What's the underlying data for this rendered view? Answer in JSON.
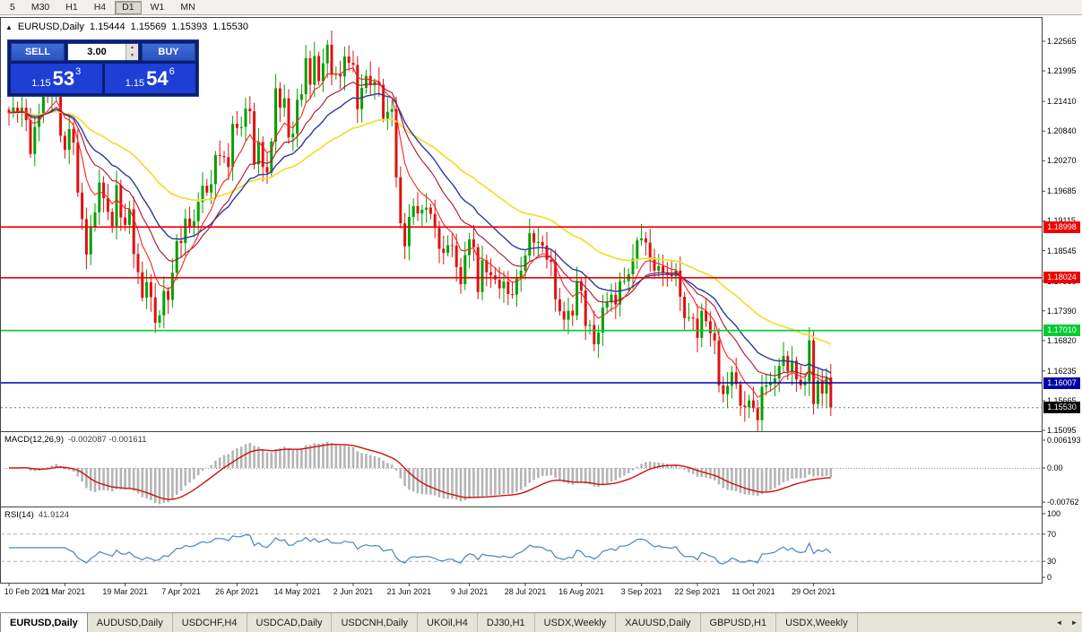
{
  "toolbar": {
    "timeframes": [
      "5",
      "M30",
      "H1",
      "H4",
      "D1",
      "W1",
      "MN"
    ],
    "active": "D1"
  },
  "chart_header": {
    "collapse_icon": "▲",
    "symbol": "EURUSD,Daily",
    "open": "1.15444",
    "high": "1.15569",
    "low": "1.15393",
    "close": "1.15530"
  },
  "trade_panel": {
    "sell_label": "SELL",
    "buy_label": "BUY",
    "volume": "3.00",
    "spin_up_icon": "▲",
    "spin_down_icon": "▼",
    "bid": {
      "prefix": "1.15",
      "big": "53",
      "sup": "3"
    },
    "ask": {
      "prefix": "1.15",
      "big": "54",
      "sup": "6"
    }
  },
  "price_axis": [
    "1.22565",
    "1.21995",
    "1.21410",
    "1.20840",
    "1.20270",
    "1.19685",
    "1.19115",
    "1.18545",
    "1.17960",
    "1.17390",
    "1.16820",
    "1.16235",
    "1.15665",
    "1.15095"
  ],
  "macd_panel": {
    "name": "MACD(12,26,9)",
    "values": "-0.002087 -0.001611",
    "axis": [
      "0.006193",
      "0.00",
      "-0.00762"
    ]
  },
  "rsi_panel": {
    "name": "RSI(14)",
    "value": "41.9124",
    "axis": [
      "100",
      "70",
      "30",
      "0"
    ]
  },
  "tabs": {
    "scroll_left_icon": "◄",
    "scroll_right_icon": "►",
    "items": [
      {
        "label": "EURUSD,Daily",
        "active": true
      },
      {
        "label": "AUDUSD,Daily"
      },
      {
        "label": "USDCHF,H4"
      },
      {
        "label": "USDCAD,Daily"
      },
      {
        "label": "USDCNH,Daily"
      },
      {
        "label": "UKOil,H4"
      },
      {
        "label": "DJ30,H1"
      },
      {
        "label": "USDX,Weekly"
      },
      {
        "label": "XAUUSD,Daily"
      },
      {
        "label": "GBPUSD,H1"
      },
      {
        "label": "USDX,Weekly"
      }
    ]
  },
  "chart_data": {
    "type": "candlestick",
    "title": "EURUSD,Daily",
    "ohlc_last": {
      "open": 1.15444,
      "high": 1.15569,
      "low": 1.15393,
      "close": 1.1553
    },
    "y_ticks": [
      1.22565,
      1.21995,
      1.2141,
      1.2084,
      1.2027,
      1.19685,
      1.19115,
      1.18545,
      1.1796,
      1.1739,
      1.1682,
      1.16235,
      1.15665,
      1.15095
    ],
    "x_dates": [
      {
        "label": "10 Feb 2021",
        "i": 0
      },
      {
        "label": "1 Mar 2021",
        "i": 13
      },
      {
        "label": "19 Mar 2021",
        "i": 27
      },
      {
        "label": "7 Apr 2021",
        "i": 40
      },
      {
        "label": "26 Apr 2021",
        "i": 53
      },
      {
        "label": "14 May 2021",
        "i": 67
      },
      {
        "label": "2 Jun 2021",
        "i": 80
      },
      {
        "label": "21 Jun 2021",
        "i": 93
      },
      {
        "label": "9 Jul 2021",
        "i": 107
      },
      {
        "label": "28 Jul 2021",
        "i": 120
      },
      {
        "label": "16 Aug 2021",
        "i": 133
      },
      {
        "label": "3 Sep 2021",
        "i": 147
      },
      {
        "label": "22 Sep 2021",
        "i": 160
      },
      {
        "label": "11 Oct 2021",
        "i": 173
      },
      {
        "label": "29 Oct 2021",
        "i": 187
      }
    ],
    "closes": [
      1.2119,
      1.2129,
      1.212,
      1.2129,
      1.2105,
      1.204,
      1.2092,
      1.2117,
      1.2156,
      1.215,
      1.2168,
      1.2175,
      1.2075,
      1.2048,
      1.2088,
      1.2062,
      1.1966,
      1.1915,
      1.1847,
      1.19,
      1.1928,
      1.1985,
      1.1955,
      1.1929,
      1.1902,
      1.198,
      1.1918,
      1.1904,
      1.1934,
      1.1848,
      1.1813,
      1.1764,
      1.1794,
      1.1765,
      1.1716,
      1.173,
      1.1777,
      1.176,
      1.1812,
      1.1873,
      1.1869,
      1.1916,
      1.1899,
      1.1911,
      1.1948,
      1.1979,
      1.1966,
      1.1982,
      1.2038,
      1.2036,
      1.2034,
      1.2015,
      1.2098,
      1.209,
      1.2092,
      1.2127,
      1.2122,
      1.202,
      1.2063,
      1.2015,
      1.2004,
      1.2064,
      1.2166,
      1.2129,
      1.2147,
      1.2072,
      1.2079,
      1.2144,
      1.2155,
      1.2224,
      1.2173,
      1.2228,
      1.218,
      1.2214,
      1.225,
      1.2192,
      1.2194,
      1.2189,
      1.2227,
      1.2215,
      1.2211,
      1.2126,
      1.2167,
      1.219,
      1.2172,
      1.2179,
      1.2173,
      1.2108,
      1.2121,
      1.2126,
      1.1995,
      1.1907,
      1.1863,
      1.1919,
      1.194,
      1.1926,
      1.1933,
      1.1937,
      1.1925,
      1.1898,
      1.1858,
      1.185,
      1.1865,
      1.1864,
      1.1823,
      1.179,
      1.1846,
      1.1876,
      1.1861,
      1.1775,
      1.1836,
      1.1813,
      1.1807,
      1.1799,
      1.1782,
      1.1795,
      1.1771,
      1.177,
      1.1803,
      1.1816,
      1.1845,
      1.1888,
      1.187,
      1.1871,
      1.1864,
      1.1837,
      1.1833,
      1.1761,
      1.1738,
      1.1722,
      1.1739,
      1.173,
      1.1796,
      1.1778,
      1.171,
      1.1712,
      1.1675,
      1.1697,
      1.1745,
      1.1755,
      1.177,
      1.1751,
      1.1796,
      1.1796,
      1.1809,
      1.1839,
      1.1874,
      1.1878,
      1.187,
      1.1841,
      1.1816,
      1.1825,
      1.1813,
      1.181,
      1.1805,
      1.1816,
      1.1766,
      1.1725,
      1.1726,
      1.1724,
      1.1687,
      1.1739,
      1.1719,
      1.1696,
      1.1682,
      1.1596,
      1.1579,
      1.1595,
      1.1621,
      1.1598,
      1.1557,
      1.1554,
      1.1567,
      1.1552,
      1.1529,
      1.1593,
      1.1596,
      1.1601,
      1.1609,
      1.1633,
      1.1652,
      1.1623,
      1.1643,
      1.1607,
      1.1596,
      1.1603,
      1.1682,
      1.156,
      1.1605,
      1.158,
      1.1611,
      1.1553
    ],
    "levels": [
      {
        "value": 1.18998,
        "label": "1.18998",
        "color": "#ee0000",
        "text_color": "#ffffff"
      },
      {
        "value": 1.18024,
        "label": "1.18024",
        "color": "#ee0000",
        "text_color": "#ffffff"
      },
      {
        "value": 1.1701,
        "label": "1.17010",
        "color": "#00cc33",
        "text_color": "#ffffff"
      },
      {
        "value": 1.16007,
        "label": "1.16007",
        "color": "#0000a8",
        "text_color": "#ffffff"
      }
    ],
    "current_price": {
      "value": 1.1553,
      "label": "1.15530",
      "color": "#000000",
      "text_color": "#ffffff"
    },
    "candle_up_color": "#00a000",
    "candle_down_color": "#e01010",
    "moving_averages": [
      {
        "period": 55,
        "color": "#f2de3a"
      },
      {
        "period": 26,
        "color": "#2b3a9e"
      },
      {
        "period": 17,
        "color": "#a8112e"
      },
      {
        "period": 8,
        "color": "#ff2222"
      }
    ],
    "macd": {
      "fast": 12,
      "slow": 26,
      "signal": 9,
      "histogram_color": "#b4b4b4",
      "signal_color": "#cc1111"
    },
    "rsi": {
      "period": 14,
      "color": "#4d82c0",
      "levels": [
        70,
        30
      ],
      "last": 41.9124
    }
  }
}
